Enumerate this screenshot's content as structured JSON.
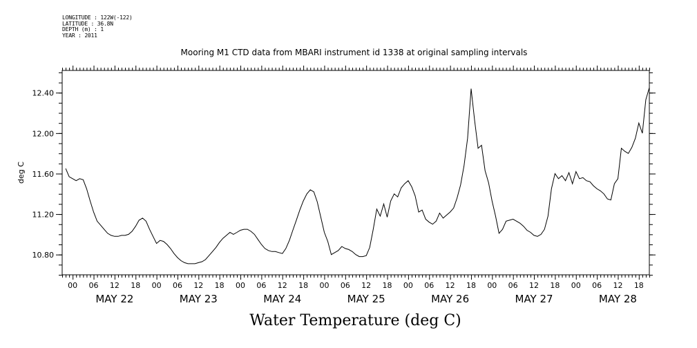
{
  "header": {
    "longitude": "LONGITUDE : 122W(-122)",
    "latitude": "LATITUDE : 36.8N",
    "depth": "DEPTH (m) : 1",
    "year": "YEAR : 2011"
  },
  "chart_data": {
    "type": "line",
    "title": "Mooring M1 CTD data from MBARI instrument id 1338 at original sampling intervals",
    "xlabel": "Water Temperature (deg C)",
    "ylabel": "deg C",
    "xlim": [
      "2011-05-21 21:00",
      "2011-05-28 21:00"
    ],
    "ylim": [
      10.6,
      12.62
    ],
    "y_ticks": [
      10.8,
      11.2,
      11.6,
      12.0,
      12.4
    ],
    "y_tick_labels": [
      "10.80",
      "11.20",
      "11.60",
      "12.00",
      "12.40"
    ],
    "x_hour_ticks": [
      {
        "t": "2011-05-22 00:00",
        "label": "00"
      },
      {
        "t": "2011-05-22 06:00",
        "label": "06"
      },
      {
        "t": "2011-05-22 12:00",
        "label": "12"
      },
      {
        "t": "2011-05-22 18:00",
        "label": "18"
      },
      {
        "t": "2011-05-23 00:00",
        "label": "00"
      },
      {
        "t": "2011-05-23 06:00",
        "label": "06"
      },
      {
        "t": "2011-05-23 12:00",
        "label": "12"
      },
      {
        "t": "2011-05-23 18:00",
        "label": "18"
      },
      {
        "t": "2011-05-24 00:00",
        "label": "00"
      },
      {
        "t": "2011-05-24 06:00",
        "label": "06"
      },
      {
        "t": "2011-05-24 12:00",
        "label": "12"
      },
      {
        "t": "2011-05-24 18:00",
        "label": "18"
      },
      {
        "t": "2011-05-25 00:00",
        "label": "00"
      },
      {
        "t": "2011-05-25 06:00",
        "label": "06"
      },
      {
        "t": "2011-05-25 12:00",
        "label": "12"
      },
      {
        "t": "2011-05-25 18:00",
        "label": "18"
      },
      {
        "t": "2011-05-26 00:00",
        "label": "00"
      },
      {
        "t": "2011-05-26 06:00",
        "label": "06"
      },
      {
        "t": "2011-05-26 12:00",
        "label": "12"
      },
      {
        "t": "2011-05-26 18:00",
        "label": "18"
      },
      {
        "t": "2011-05-27 00:00",
        "label": "00"
      },
      {
        "t": "2011-05-27 06:00",
        "label": "06"
      },
      {
        "t": "2011-05-27 12:00",
        "label": "12"
      },
      {
        "t": "2011-05-27 18:00",
        "label": "18"
      },
      {
        "t": "2011-05-28 00:00",
        "label": "00"
      },
      {
        "t": "2011-05-28 06:00",
        "label": "06"
      },
      {
        "t": "2011-05-28 12:00",
        "label": "12"
      },
      {
        "t": "2011-05-28 18:00",
        "label": "18"
      }
    ],
    "x_day_labels": [
      {
        "t": "2011-05-22 12:00",
        "label": "MAY 22"
      },
      {
        "t": "2011-05-23 12:00",
        "label": "MAY 23"
      },
      {
        "t": "2011-05-24 12:00",
        "label": "MAY 24"
      },
      {
        "t": "2011-05-25 12:00",
        "label": "MAY 25"
      },
      {
        "t": "2011-05-26 12:00",
        "label": "MAY 26"
      },
      {
        "t": "2011-05-27 12:00",
        "label": "MAY 27"
      },
      {
        "t": "2011-05-28 12:00",
        "label": "MAY 28"
      }
    ],
    "series": [
      {
        "color": "#000000",
        "points": [
          [
            "2011-05-21 22:00",
            11.65
          ],
          [
            "2011-05-21 23:00",
            11.57
          ],
          [
            "2011-05-22 00:00",
            11.55
          ],
          [
            "2011-05-22 01:00",
            11.53
          ],
          [
            "2011-05-22 02:00",
            11.55
          ],
          [
            "2011-05-22 03:00",
            11.54
          ],
          [
            "2011-05-22 04:00",
            11.45
          ],
          [
            "2011-05-22 05:00",
            11.33
          ],
          [
            "2011-05-22 06:00",
            11.22
          ],
          [
            "2011-05-22 07:00",
            11.13
          ],
          [
            "2011-05-22 08:00",
            11.09
          ],
          [
            "2011-05-22 09:00",
            11.05
          ],
          [
            "2011-05-22 10:00",
            11.01
          ],
          [
            "2011-05-22 11:00",
            10.99
          ],
          [
            "2011-05-22 12:00",
            10.98
          ],
          [
            "2011-05-22 13:00",
            10.98
          ],
          [
            "2011-05-22 14:00",
            10.99
          ],
          [
            "2011-05-22 15:00",
            10.99
          ],
          [
            "2011-05-22 16:00",
            11.0
          ],
          [
            "2011-05-22 17:00",
            11.03
          ],
          [
            "2011-05-22 18:00",
            11.08
          ],
          [
            "2011-05-22 19:00",
            11.14
          ],
          [
            "2011-05-22 20:00",
            11.16
          ],
          [
            "2011-05-22 21:00",
            11.13
          ],
          [
            "2011-05-22 22:00",
            11.05
          ],
          [
            "2011-05-22 23:00",
            10.98
          ],
          [
            "2011-05-23 00:00",
            10.91
          ],
          [
            "2011-05-23 01:00",
            10.94
          ],
          [
            "2011-05-23 02:00",
            10.93
          ],
          [
            "2011-05-23 03:00",
            10.9
          ],
          [
            "2011-05-23 04:00",
            10.86
          ],
          [
            "2011-05-23 05:00",
            10.81
          ],
          [
            "2011-05-23 06:00",
            10.77
          ],
          [
            "2011-05-23 07:00",
            10.74
          ],
          [
            "2011-05-23 08:00",
            10.72
          ],
          [
            "2011-05-23 09:00",
            10.71
          ],
          [
            "2011-05-23 10:00",
            10.71
          ],
          [
            "2011-05-23 11:00",
            10.71
          ],
          [
            "2011-05-23 12:00",
            10.72
          ],
          [
            "2011-05-23 13:00",
            10.73
          ],
          [
            "2011-05-23 14:00",
            10.75
          ],
          [
            "2011-05-23 15:00",
            10.79
          ],
          [
            "2011-05-23 16:00",
            10.83
          ],
          [
            "2011-05-23 17:00",
            10.87
          ],
          [
            "2011-05-23 18:00",
            10.92
          ],
          [
            "2011-05-23 19:00",
            10.96
          ],
          [
            "2011-05-23 20:00",
            10.99
          ],
          [
            "2011-05-23 21:00",
            11.02
          ],
          [
            "2011-05-23 22:00",
            11.0
          ],
          [
            "2011-05-23 23:00",
            11.02
          ],
          [
            "2011-05-24 00:00",
            11.04
          ],
          [
            "2011-05-24 01:00",
            11.05
          ],
          [
            "2011-05-24 02:00",
            11.05
          ],
          [
            "2011-05-24 03:00",
            11.03
          ],
          [
            "2011-05-24 04:00",
            11.0
          ],
          [
            "2011-05-24 05:00",
            10.95
          ],
          [
            "2011-05-24 06:00",
            10.9
          ],
          [
            "2011-05-24 07:00",
            10.86
          ],
          [
            "2011-05-24 08:00",
            10.84
          ],
          [
            "2011-05-24 09:00",
            10.83
          ],
          [
            "2011-05-24 10:00",
            10.83
          ],
          [
            "2011-05-24 11:00",
            10.82
          ],
          [
            "2011-05-24 12:00",
            10.81
          ],
          [
            "2011-05-24 13:00",
            10.86
          ],
          [
            "2011-05-24 14:00",
            10.94
          ],
          [
            "2011-05-24 15:00",
            11.04
          ],
          [
            "2011-05-24 16:00",
            11.14
          ],
          [
            "2011-05-24 17:00",
            11.24
          ],
          [
            "2011-05-24 18:00",
            11.33
          ],
          [
            "2011-05-24 19:00",
            11.4
          ],
          [
            "2011-05-24 20:00",
            11.44
          ],
          [
            "2011-05-24 21:00",
            11.42
          ],
          [
            "2011-05-24 22:00",
            11.32
          ],
          [
            "2011-05-24 23:00",
            11.17
          ],
          [
            "2011-05-25 00:00",
            11.02
          ],
          [
            "2011-05-25 01:00",
            10.93
          ],
          [
            "2011-05-25 02:00",
            10.8
          ],
          [
            "2011-05-25 03:00",
            10.82
          ],
          [
            "2011-05-25 04:00",
            10.84
          ],
          [
            "2011-05-25 05:00",
            10.88
          ],
          [
            "2011-05-25 06:00",
            10.86
          ],
          [
            "2011-05-25 07:00",
            10.85
          ],
          [
            "2011-05-25 08:00",
            10.83
          ],
          [
            "2011-05-25 09:00",
            10.8
          ],
          [
            "2011-05-25 10:00",
            10.78
          ],
          [
            "2011-05-25 11:00",
            10.78
          ],
          [
            "2011-05-25 12:00",
            10.79
          ],
          [
            "2011-05-25 13:00",
            10.87
          ],
          [
            "2011-05-25 14:00",
            11.05
          ],
          [
            "2011-05-25 15:00",
            11.25
          ],
          [
            "2011-05-25 16:00",
            11.18
          ],
          [
            "2011-05-25 17:00",
            11.3
          ],
          [
            "2011-05-25 18:00",
            11.17
          ],
          [
            "2011-05-25 19:00",
            11.33
          ],
          [
            "2011-05-25 20:00",
            11.4
          ],
          [
            "2011-05-25 21:00",
            11.37
          ],
          [
            "2011-05-25 22:00",
            11.46
          ],
          [
            "2011-05-25 23:00",
            11.5
          ],
          [
            "2011-05-26 00:00",
            11.53
          ],
          [
            "2011-05-26 01:00",
            11.47
          ],
          [
            "2011-05-26 02:00",
            11.38
          ],
          [
            "2011-05-26 03:00",
            11.22
          ],
          [
            "2011-05-26 04:00",
            11.24
          ],
          [
            "2011-05-26 05:00",
            11.15
          ],
          [
            "2011-05-26 06:00",
            11.12
          ],
          [
            "2011-05-26 07:00",
            11.1
          ],
          [
            "2011-05-26 08:00",
            11.13
          ],
          [
            "2011-05-26 09:00",
            11.21
          ],
          [
            "2011-05-26 10:00",
            11.16
          ],
          [
            "2011-05-26 11:00",
            11.19
          ],
          [
            "2011-05-26 12:00",
            11.22
          ],
          [
            "2011-05-26 13:00",
            11.26
          ],
          [
            "2011-05-26 14:00",
            11.36
          ],
          [
            "2011-05-26 15:00",
            11.49
          ],
          [
            "2011-05-26 16:00",
            11.68
          ],
          [
            "2011-05-26 17:00",
            11.95
          ],
          [
            "2011-05-26 18:00",
            12.44
          ],
          [
            "2011-05-26 19:00",
            12.13
          ],
          [
            "2011-05-26 20:00",
            11.85
          ],
          [
            "2011-05-26 21:00",
            11.88
          ],
          [
            "2011-05-26 22:00",
            11.63
          ],
          [
            "2011-05-26 23:00",
            11.51
          ],
          [
            "2011-05-27 00:00",
            11.33
          ],
          [
            "2011-05-27 01:00",
            11.18
          ],
          [
            "2011-05-27 02:00",
            11.01
          ],
          [
            "2011-05-27 03:00",
            11.05
          ],
          [
            "2011-05-27 04:00",
            11.13
          ],
          [
            "2011-05-27 05:00",
            11.14
          ],
          [
            "2011-05-27 06:00",
            11.15
          ],
          [
            "2011-05-27 07:00",
            11.13
          ],
          [
            "2011-05-27 08:00",
            11.11
          ],
          [
            "2011-05-27 09:00",
            11.08
          ],
          [
            "2011-05-27 10:00",
            11.04
          ],
          [
            "2011-05-27 11:00",
            11.02
          ],
          [
            "2011-05-27 12:00",
            10.99
          ],
          [
            "2011-05-27 13:00",
            10.98
          ],
          [
            "2011-05-27 14:00",
            11.0
          ],
          [
            "2011-05-27 15:00",
            11.05
          ],
          [
            "2011-05-27 16:00",
            11.18
          ],
          [
            "2011-05-27 17:00",
            11.45
          ],
          [
            "2011-05-27 18:00",
            11.6
          ],
          [
            "2011-05-27 19:00",
            11.55
          ],
          [
            "2011-05-27 20:00",
            11.58
          ],
          [
            "2011-05-27 21:00",
            11.53
          ],
          [
            "2011-05-27 22:00",
            11.61
          ],
          [
            "2011-05-27 23:00",
            11.5
          ],
          [
            "2011-05-28 00:00",
            11.62
          ],
          [
            "2011-05-28 01:00",
            11.55
          ],
          [
            "2011-05-28 02:00",
            11.56
          ],
          [
            "2011-05-28 03:00",
            11.53
          ],
          [
            "2011-05-28 04:00",
            11.52
          ],
          [
            "2011-05-28 05:00",
            11.48
          ],
          [
            "2011-05-28 06:00",
            11.45
          ],
          [
            "2011-05-28 07:00",
            11.43
          ],
          [
            "2011-05-28 08:00",
            11.4
          ],
          [
            "2011-05-28 09:00",
            11.35
          ],
          [
            "2011-05-28 10:00",
            11.34
          ],
          [
            "2011-05-28 11:00",
            11.5
          ],
          [
            "2011-05-28 12:00",
            11.55
          ],
          [
            "2011-05-28 13:00",
            11.85
          ],
          [
            "2011-05-28 14:00",
            11.82
          ],
          [
            "2011-05-28 15:00",
            11.8
          ],
          [
            "2011-05-28 16:00",
            11.86
          ],
          [
            "2011-05-28 17:00",
            11.95
          ],
          [
            "2011-05-28 18:00",
            12.1
          ],
          [
            "2011-05-28 19:00",
            12.0
          ],
          [
            "2011-05-28 20:00",
            12.33
          ],
          [
            "2011-05-28 21:00",
            12.45
          ]
        ]
      }
    ]
  }
}
